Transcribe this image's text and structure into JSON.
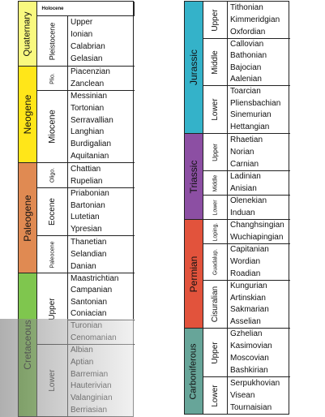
{
  "left": {
    "periods": [
      {
        "name": "Quaternary",
        "color": "#f9f97f"
      },
      {
        "name": "Neogene",
        "color": "#ffe619"
      },
      {
        "name": "Paleogene",
        "color": "#e08a52"
      },
      {
        "name": "Cretaceous",
        "color": "#7fc64e"
      }
    ],
    "epochs": [
      {
        "name": "Holocene",
        "stages": []
      },
      {
        "name": "Pleistocene",
        "stages": [
          "Upper",
          "Ionian",
          "Calabrian",
          "Gelasian"
        ]
      },
      {
        "name": "Plio.",
        "stages": [
          "Piacenzian",
          "Zanclean"
        ]
      },
      {
        "name": "Miocene",
        "stages": [
          "Messinian",
          "Tortonian",
          "Serravallian",
          "Langhian",
          "Burdigalian",
          "Aquitanian"
        ]
      },
      {
        "name": "Oligo.",
        "stages": [
          "Chattian",
          "Rupelian"
        ]
      },
      {
        "name": "Eocene",
        "stages": [
          "Priabonian",
          "Bartonian",
          "Lutetian",
          "Ypresian"
        ]
      },
      {
        "name": "Paleocene",
        "stages": [
          "Thanetian",
          "Selandian",
          "Danian"
        ]
      },
      {
        "name": "Upper",
        "stages": [
          "Maastrichtian",
          "Campanian",
          "Santonian",
          "Coniacian"
        ]
      },
      {
        "name": "",
        "stages": [
          "Turonian",
          "Cenomanian"
        ]
      },
      {
        "name": "Lower",
        "stages": [
          "Albian",
          "Aptian",
          "Barremian",
          "Hauterivian",
          "Valanginian",
          "Berriasian"
        ]
      }
    ]
  },
  "right": {
    "periods": [
      {
        "name": "Jurassic",
        "color": "#34b2c9"
      },
      {
        "name": "Triassic",
        "color": "#8c4fa3"
      },
      {
        "name": "Permian",
        "color": "#e2533c"
      },
      {
        "name": "Carboniferous",
        "color": "#67a599"
      }
    ],
    "epochs": [
      {
        "name": "Upper",
        "stages": [
          "Tithonian",
          "Kimmeridgian",
          "Oxfordian"
        ]
      },
      {
        "name": "Middle",
        "stages": [
          "Callovian",
          "Bathonian",
          "Bajocian",
          "Aalenian"
        ]
      },
      {
        "name": "Lower",
        "stages": [
          "Toarcian",
          "Pliensbachian",
          "Sinemurian",
          "Hettangian"
        ]
      },
      {
        "name": "Upper",
        "stages": [
          "Rhaetian",
          "Norian",
          "Carnian"
        ]
      },
      {
        "name": "Middle",
        "stages": [
          "Ladinian",
          "Anisian"
        ]
      },
      {
        "name": "Lower",
        "stages": [
          "Olenekian",
          "Induan"
        ]
      },
      {
        "name": "Loping.",
        "stages": [
          "Changhsingian",
          "Wuchiapingian"
        ]
      },
      {
        "name": "Guadalup.",
        "stages": [
          "Capitanian",
          "Wordian",
          "Roadian"
        ]
      },
      {
        "name": "Cisuralian",
        "stages": [
          "Kungurian",
          "Artinskian",
          "Sakmarian",
          "Asselian"
        ]
      },
      {
        "name": "Upper",
        "stages": [
          "Gzhelian",
          "Kasimovian",
          "Moscovian",
          "Bashkirian"
        ]
      },
      {
        "name": "Lower",
        "stages": [
          "Serpukhovian",
          "Visean",
          "Tournaisian"
        ]
      }
    ]
  }
}
